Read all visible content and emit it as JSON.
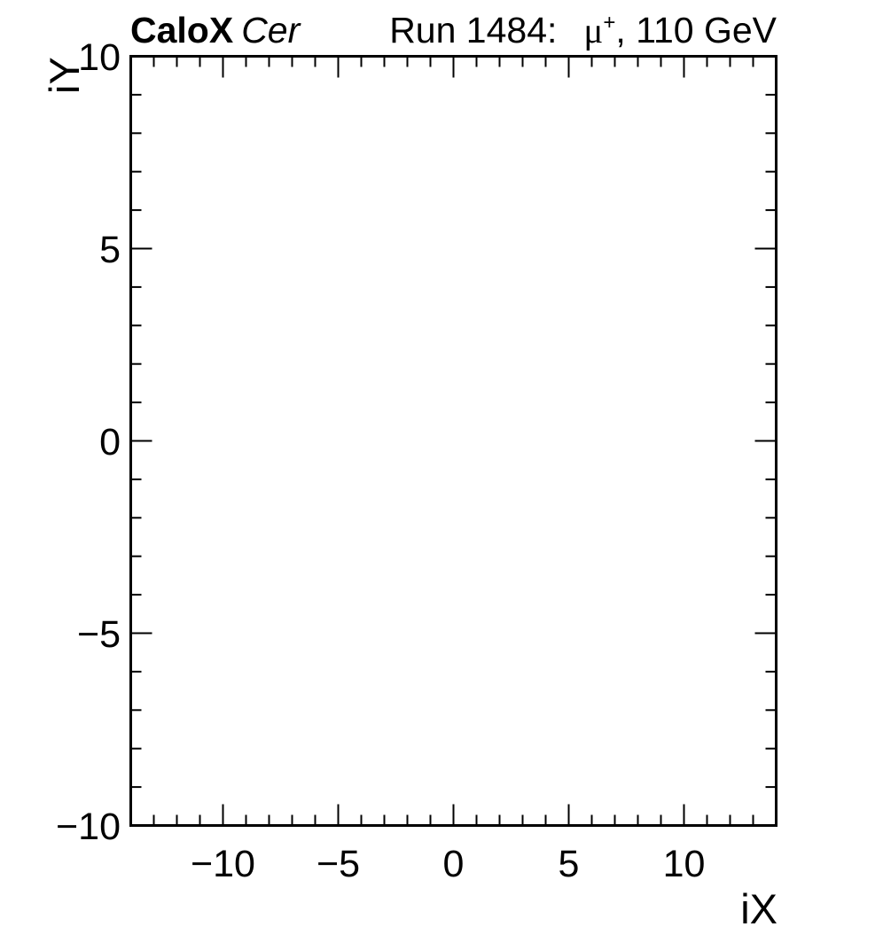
{
  "header": {
    "experiment": "CaloX",
    "readout": "Cer",
    "run_label": "Run 1484:",
    "particle_symbol": "μ",
    "particle_charge": "+",
    "beam_energy": ", 110 GeV"
  },
  "chart_data": {
    "type": "heatmap",
    "title": "CaloX Cer",
    "subtitle": "Run 1484: μ+, 110 GeV",
    "xlabel": "iX",
    "ylabel": "iY",
    "xlim": [
      -14,
      14
    ],
    "ylim": [
      -10,
      10
    ],
    "x_major_ticks": [
      -10,
      -5,
      0,
      5,
      10
    ],
    "x_tick_labels": [
      "−10",
      "−5",
      "0",
      "5",
      "10"
    ],
    "y_major_ticks": [
      -10,
      -5,
      0,
      5,
      10
    ],
    "y_tick_labels": [
      "−10",
      "−5",
      "0",
      "5",
      "10"
    ],
    "minor_tick_step_x": 1,
    "minor_tick_step_y": 1,
    "ticks_mirrored": true,
    "grid": false,
    "legend": null,
    "series": [],
    "frame_color": "#000000",
    "background_color": "#ffffff"
  }
}
